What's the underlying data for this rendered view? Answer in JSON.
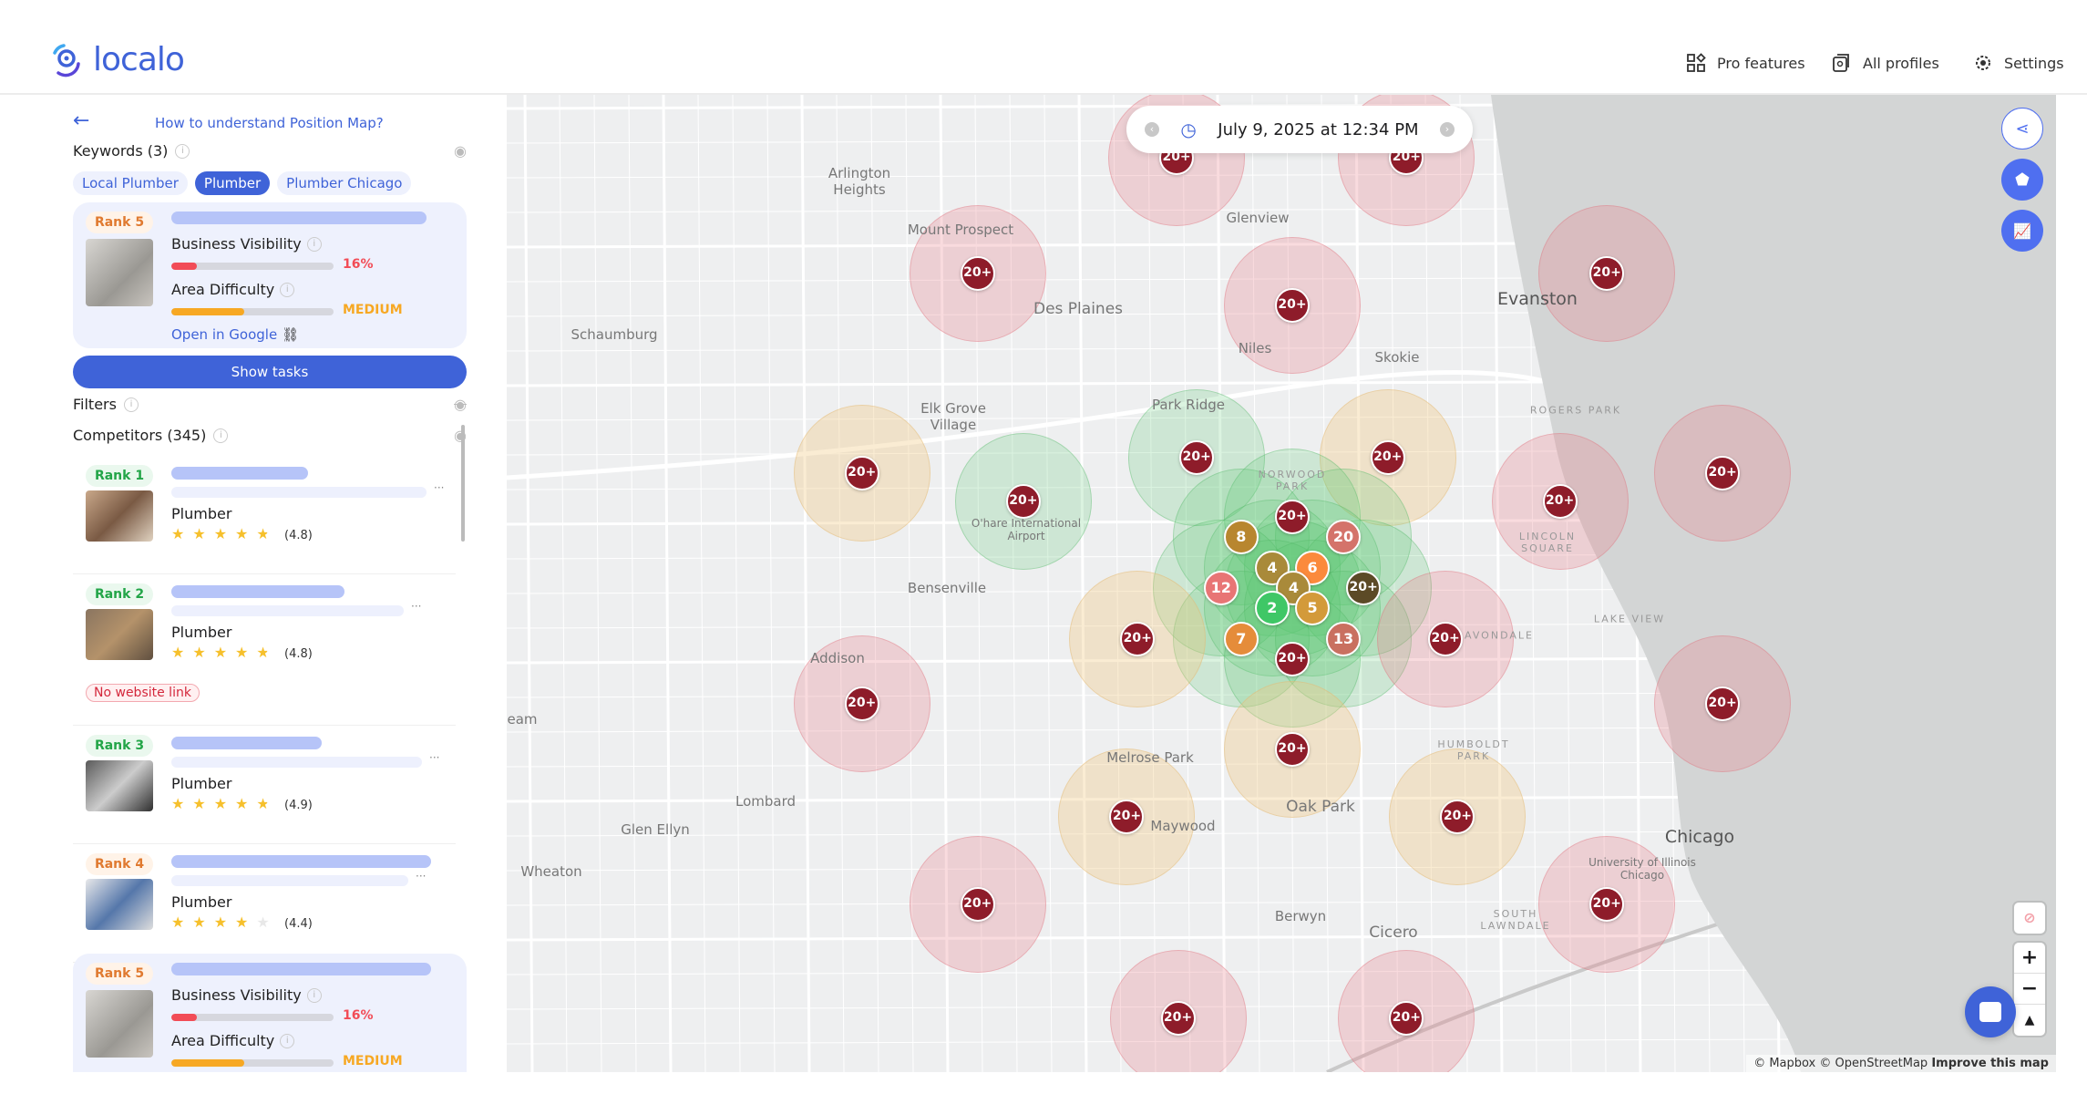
{
  "header": {
    "brand": "localo",
    "nav": [
      {
        "label": "Pro features",
        "icon": "grid-icon"
      },
      {
        "label": "All profiles",
        "icon": "profiles-icon"
      },
      {
        "label": "Settings",
        "icon": "gear-icon"
      }
    ]
  },
  "panel": {
    "help_link": "How to understand Position Map?",
    "keywords_label": "Keywords (3)",
    "keywords": [
      {
        "label": "Local Plumber",
        "active": false
      },
      {
        "label": "Plumber",
        "active": true
      },
      {
        "label": "Plumber Chicago",
        "active": false
      }
    ],
    "business": {
      "rank": "Rank 5",
      "visibility_label": "Business Visibility",
      "visibility_value": "16%",
      "visibility_percent": 16,
      "difficulty_label": "Area Difficulty",
      "difficulty_value": "MEDIUM",
      "difficulty_percent": 45,
      "open_link": "Open in Google"
    },
    "show_tasks": "Show tasks",
    "filters_label": "Filters",
    "competitors_label": "Competitors (345)",
    "competitors": [
      {
        "rank": "Rank 1",
        "category": "Plumber",
        "rating": "(4.8)",
        "stars": 4.5,
        "badge": ""
      },
      {
        "rank": "Rank 2",
        "category": "Plumber",
        "rating": "(4.8)",
        "stars": 4.5,
        "badge": "No website link"
      },
      {
        "rank": "Rank 3",
        "category": "Plumber",
        "rating": "(4.9)",
        "stars": 4.5,
        "badge": ""
      },
      {
        "rank": "Rank 4",
        "category": "Plumber",
        "rating": "(4.4)",
        "stars": 4,
        "badge": ""
      }
    ]
  },
  "map": {
    "date": "July 9, 2025 at 12:34 PM",
    "colors": {
      "rank_20plus": "#8e1c2a",
      "accent": "#3f63d8"
    },
    "pins": [
      "20+",
      "20+",
      "20+",
      "20+",
      "20+",
      "20+",
      "20+",
      "20+",
      "20+",
      "20+",
      "20+",
      "20+",
      "8",
      "20",
      "4",
      "6",
      "4",
      "12",
      "20+",
      "2",
      "5",
      "7",
      "13",
      "20+",
      "20+",
      "20+",
      "20+",
      "20+",
      "20+",
      "20+",
      "20+",
      "20+",
      "20+",
      "20+",
      "20+"
    ],
    "places": [
      "Arlington Heights",
      "Mount Prospect",
      "Glenview",
      "Des Plaines",
      "Evanston",
      "Schaumburg",
      "Niles",
      "Skokie",
      "Elk Grove Village",
      "Park Ridge",
      "ROGERS PARK",
      "O'hare International Airport",
      "Bensenville",
      "LINCOLN SQUARE",
      "LAKE VIEW",
      "Addison",
      "AVONDALE",
      "eam",
      "HUMBOLDT PARK",
      "Melrose Park",
      "Lombard",
      "Maywood",
      "Oak Park",
      "Glen Ellyn",
      "Chicago",
      "Wheaton",
      "University of Illinois Chicago",
      "Berwyn",
      "Cicero",
      "SOUTH LAWNDALE",
      "NORWOOD PARK"
    ],
    "attribution": "© Mapbox © OpenStreetMap",
    "improve": "Improve this map"
  }
}
